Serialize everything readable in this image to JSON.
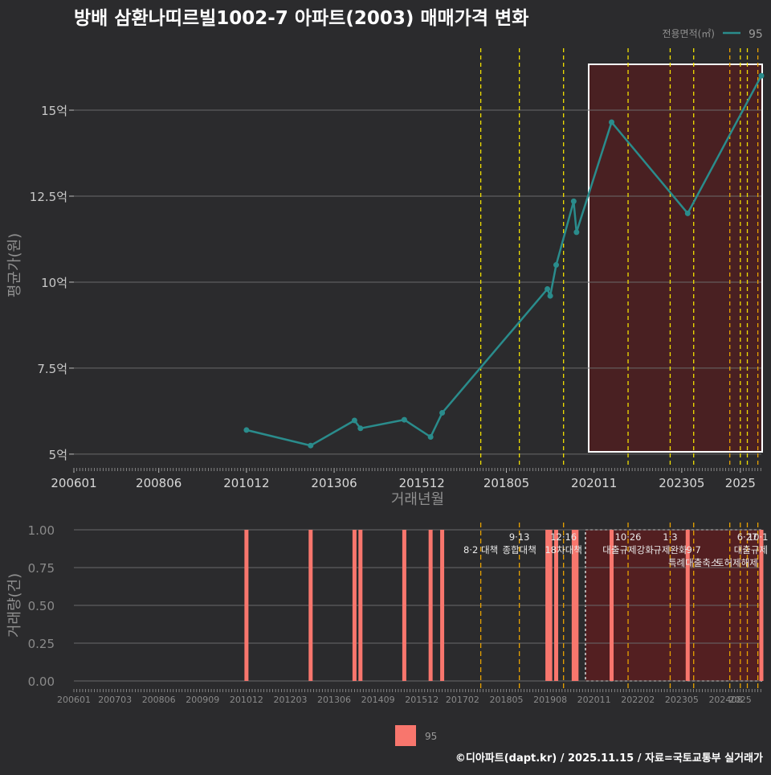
{
  "title": "방배 삼환나띠르빌1002-7 아파트(2003) 매매가격 변화",
  "footer": "©디아파트(dapt.kr) / 2025.11.15 / 자료=국토교통부 실거래가",
  "colors": {
    "background": "#2b2b2d",
    "line": "#2a8c8c",
    "bar": "#f8766d",
    "policy_yellow": "#f2e000",
    "policy_orange": "#e8a200",
    "highlight_fill": "#6b1b1b",
    "grid": "#6a6a6a"
  },
  "chart_data": [
    {
      "type": "line",
      "title": "방배 삼환나띠르빌1002-7 아파트(2003) 매매가격 변화",
      "xlabel": "거래년월",
      "ylabel": "평균가(원)",
      "xlim": [
        2006.0,
        2025.6
      ],
      "ylim": [
        4.6,
        16.8
      ],
      "xticks": [
        {
          "label": "200601",
          "value": 2006.0
        },
        {
          "label": "200806",
          "value": 2008.42
        },
        {
          "label": "201012",
          "value": 2010.92
        },
        {
          "label": "201306",
          "value": 2013.42
        },
        {
          "label": "201512",
          "value": 2015.92
        },
        {
          "label": "201805",
          "value": 2018.33
        },
        {
          "label": "202011",
          "value": 2020.83
        },
        {
          "label": "202305",
          "value": 2023.33
        },
        {
          "label": "2025",
          "value": 2025.0
        }
      ],
      "yticks": [
        {
          "label": "5억",
          "value": 5
        },
        {
          "label": "7.5억",
          "value": 7.5
        },
        {
          "label": "10억",
          "value": 10
        },
        {
          "label": "12.5억",
          "value": 12.5
        },
        {
          "label": "15억",
          "value": 15
        }
      ],
      "legend": {
        "title": "전용면적(㎡)",
        "label": "95",
        "position": "top-right"
      },
      "series": [
        {
          "name": "95",
          "x": [
            2010.92,
            2012.75,
            2014.0,
            2014.17,
            2015.42,
            2016.17,
            2016.5,
            2019.5,
            2019.58,
            2019.75,
            2020.25,
            2020.33,
            2021.33,
            2023.5,
            2025.6
          ],
          "y": [
            5.7,
            5.25,
            5.98,
            5.75,
            6.0,
            5.5,
            6.2,
            9.8,
            9.6,
            10.5,
            12.35,
            11.45,
            14.65,
            12.0,
            16.0
          ]
        }
      ],
      "policy_lines": [
        {
          "x": 2017.6,
          "color": "yellow"
        },
        {
          "x": 2018.7,
          "color": "yellow"
        },
        {
          "x": 2019.96,
          "color": "yellow"
        },
        {
          "x": 2021.8,
          "color": "yellow"
        },
        {
          "x": 2023.0,
          "color": "yellow"
        },
        {
          "x": 2023.67,
          "color": "yellow"
        },
        {
          "x": 2024.7,
          "color": "orange"
        },
        {
          "x": 2025.0,
          "color": "yellow"
        },
        {
          "x": 2025.2,
          "color": "yellow"
        },
        {
          "x": 2025.5,
          "color": "orange"
        }
      ],
      "highlight_range": [
        2020.83,
        2025.6
      ]
    },
    {
      "type": "bar",
      "ylabel": "거래량(건)",
      "xlim": [
        2006.0,
        2025.6
      ],
      "ylim": [
        0,
        1.0
      ],
      "xticks": [
        {
          "label": "200601",
          "value": 2006.0
        },
        {
          "label": "200703",
          "value": 2007.17
        },
        {
          "label": "200806",
          "value": 2008.42
        },
        {
          "label": "200909",
          "value": 2009.67
        },
        {
          "label": "201012",
          "value": 2010.92
        },
        {
          "label": "201203",
          "value": 2012.17
        },
        {
          "label": "201306",
          "value": 2013.42
        },
        {
          "label": "201409",
          "value": 2014.67
        },
        {
          "label": "201512",
          "value": 2015.92
        },
        {
          "label": "201702",
          "value": 2017.08
        },
        {
          "label": "201805",
          "value": 2018.33
        },
        {
          "label": "201908",
          "value": 2019.58
        },
        {
          "label": "202011",
          "value": 2020.83
        },
        {
          "label": "202202",
          "value": 2022.08
        },
        {
          "label": "202305",
          "value": 2023.33
        },
        {
          "label": "202408",
          "value": 2024.58
        },
        {
          "label": "2025",
          "value": 2025.0
        }
      ],
      "yticks": [
        {
          "label": "0.00",
          "value": 0
        },
        {
          "label": "0.25",
          "value": 0.25
        },
        {
          "label": "0.50",
          "value": 0.5
        },
        {
          "label": "0.75",
          "value": 0.75
        },
        {
          "label": "1.00",
          "value": 1.0
        }
      ],
      "bars": {
        "name": "95",
        "x": [
          2010.92,
          2012.75,
          2014.0,
          2014.17,
          2015.42,
          2016.17,
          2016.5,
          2019.5,
          2019.58,
          2019.75,
          2020.25,
          2020.33,
          2021.33,
          2023.5,
          2025.6
        ],
        "values": [
          1,
          1,
          1,
          1,
          1,
          1,
          1,
          1,
          1,
          1,
          1,
          1,
          1,
          1,
          1
        ]
      },
      "policy_lines": [
        {
          "x": 2017.6,
          "color": "orange"
        },
        {
          "x": 2018.7,
          "color": "orange"
        },
        {
          "x": 2019.96,
          "color": "orange"
        },
        {
          "x": 2021.8,
          "color": "orange"
        },
        {
          "x": 2023.0,
          "color": "orange"
        },
        {
          "x": 2023.67,
          "color": "orange"
        },
        {
          "x": 2024.7,
          "color": "orange"
        },
        {
          "x": 2025.0,
          "color": "orange"
        },
        {
          "x": 2025.2,
          "color": "orange"
        },
        {
          "x": 2025.5,
          "color": "orange"
        }
      ],
      "highlight_range": [
        2020.83,
        2025.6
      ],
      "annotations": [
        {
          "text": "8·2 대책",
          "x": 2017.6,
          "row": 1
        },
        {
          "text": "9·13",
          "x": 2018.7,
          "row": 0
        },
        {
          "text": "종합대책",
          "x": 2018.7,
          "row": 1
        },
        {
          "text": "12·16",
          "x": 2019.96,
          "row": 0
        },
        {
          "text": "18차대책",
          "x": 2019.96,
          "row": 1
        },
        {
          "text": "10·26",
          "x": 2021.8,
          "row": 0
        },
        {
          "text": "대출규제강화",
          "x": 2021.8,
          "row": 1
        },
        {
          "text": "1·3",
          "x": 2023.0,
          "row": 0
        },
        {
          "text": "규제완화",
          "x": 2023.0,
          "row": 1
        },
        {
          "text": "9·7",
          "x": 2023.67,
          "row": 1
        },
        {
          "text": "특례대출축소",
          "x": 2023.67,
          "row": 2
        },
        {
          "text": "토허제해제",
          "x": 2024.9,
          "row": 2
        },
        {
          "text": "6·27",
          "x": 2025.2,
          "row": 0
        },
        {
          "text": "10·1",
          "x": 2025.5,
          "row": 0
        },
        {
          "text": "대출규제",
          "x": 2025.3,
          "row": 1
        }
      ],
      "legend": {
        "label": "95",
        "position": "bottom"
      }
    }
  ]
}
